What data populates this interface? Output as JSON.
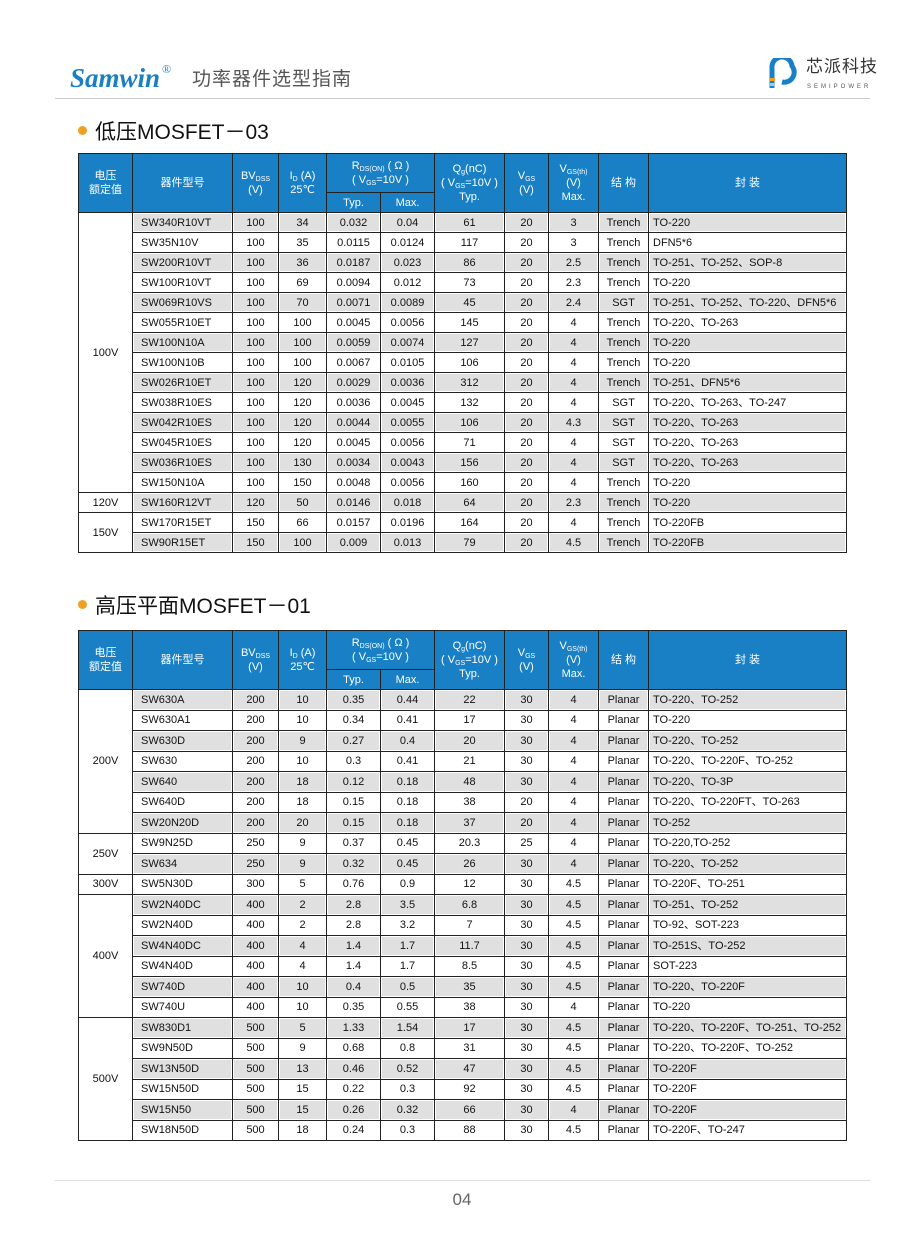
{
  "header": {
    "brand": "Samwin",
    "brand_mark": "®",
    "subtitle": "功率器件选型指南",
    "logo_cn": "芯派科技",
    "logo_en": "SEMIPOWER"
  },
  "colors": {
    "header_blue": "#1a80c6",
    "row_grey": "#e0e0e0",
    "bullet": "#f0a020"
  },
  "columns": {
    "voltage": [
      "电压",
      "额定值"
    ],
    "part": "器件型号",
    "bv": [
      "BV",
      "DSS",
      "(V)"
    ],
    "id": [
      "I",
      "D",
      " (A)",
      "25℃"
    ],
    "rds": [
      "R",
      "DS(ON)",
      " ( Ω )",
      "( V",
      "GS",
      "=10V )"
    ],
    "typ": "Typ.",
    "max": "Max.",
    "qg": [
      "Q",
      "g",
      "(nC)",
      "( V",
      "GS",
      "=10V )",
      "Typ."
    ],
    "vgs": [
      "V",
      "GS",
      "(V)"
    ],
    "vth": [
      "V",
      "GS(th)",
      "(V)",
      "Max."
    ],
    "struct": "结 构",
    "pkg": "封 装"
  },
  "sections": [
    {
      "title": "低压MOSFET－03",
      "groups": [
        {
          "voltage": "100V",
          "rows": [
            [
              "SW340R10VT",
              "100",
              "34",
              "0.032",
              "0.04",
              "61",
              "20",
              "3",
              "Trench",
              "TO-220"
            ],
            [
              "SW35N10V",
              "100",
              "35",
              "0.0115",
              "0.0124",
              "117",
              "20",
              "3",
              "Trench",
              "DFN5*6"
            ],
            [
              "SW200R10VT",
              "100",
              "36",
              "0.0187",
              "0.023",
              "86",
              "20",
              "2.5",
              "Trench",
              "TO-251、TO-252、SOP-8"
            ],
            [
              "SW100R10VT",
              "100",
              "69",
              "0.0094",
              "0.012",
              "73",
              "20",
              "2.3",
              "Trench",
              "TO-220"
            ],
            [
              "SW069R10VS",
              "100",
              "70",
              "0.0071",
              "0.0089",
              "45",
              "20",
              "2.4",
              "SGT",
              "TO-251、TO-252、TO-220、DFN5*6"
            ],
            [
              "SW055R10ET",
              "100",
              "100",
              "0.0045",
              "0.0056",
              "145",
              "20",
              "4",
              "Trench",
              "TO-220、TO-263"
            ],
            [
              "SW100N10A",
              "100",
              "100",
              "0.0059",
              "0.0074",
              "127",
              "20",
              "4",
              "Trench",
              "TO-220"
            ],
            [
              "SW100N10B",
              "100",
              "100",
              "0.0067",
              "0.0105",
              "106",
              "20",
              "4",
              "Trench",
              "TO-220"
            ],
            [
              "SW026R10ET",
              "100",
              "120",
              "0.0029",
              "0.0036",
              "312",
              "20",
              "4",
              "Trench",
              "TO-251、DFN5*6"
            ],
            [
              "SW038R10ES",
              "100",
              "120",
              "0.0036",
              "0.0045",
              "132",
              "20",
              "4",
              "SGT",
              "TO-220、TO-263、TO-247"
            ],
            [
              "SW042R10ES",
              "100",
              "120",
              "0.0044",
              "0.0055",
              "106",
              "20",
              "4.3",
              "SGT",
              "TO-220、TO-263"
            ],
            [
              "SW045R10ES",
              "100",
              "120",
              "0.0045",
              "0.0056",
              "71",
              "20",
              "4",
              "SGT",
              "TO-220、TO-263"
            ],
            [
              "SW036R10ES",
              "100",
              "130",
              "0.0034",
              "0.0043",
              "156",
              "20",
              "4",
              "SGT",
              "TO-220、TO-263"
            ],
            [
              "SW150N10A",
              "100",
              "150",
              "0.0048",
              "0.0056",
              "160",
              "20",
              "4",
              "Trench",
              "TO-220"
            ]
          ]
        },
        {
          "voltage": "120V",
          "rows": [
            [
              "SW160R12VT",
              "120",
              "50",
              "0.0146",
              "0.018",
              "64",
              "20",
              "2.3",
              "Trench",
              "TO-220"
            ]
          ]
        },
        {
          "voltage": "150V",
          "rows": [
            [
              "SW170R15ET",
              "150",
              "66",
              "0.0157",
              "0.0196",
              "164",
              "20",
              "4",
              "Trench",
              "TO-220FB"
            ],
            [
              "SW90R15ET",
              "150",
              "100",
              "0.009",
              "0.013",
              "79",
              "20",
              "4.5",
              "Trench",
              "TO-220FB"
            ]
          ]
        }
      ]
    },
    {
      "title": "高压平面MOSFET－01",
      "groups": [
        {
          "voltage": "200V",
          "rows": [
            [
              "SW630A",
              "200",
              "10",
              "0.35",
              "0.44",
              "22",
              "30",
              "4",
              "Planar",
              "TO-220、TO-252"
            ],
            [
              "SW630A1",
              "200",
              "10",
              "0.34",
              "0.41",
              "17",
              "30",
              "4",
              "Planar",
              "TO-220"
            ],
            [
              "SW630D",
              "200",
              "9",
              "0.27",
              "0.4",
              "20",
              "30",
              "4",
              "Planar",
              "TO-220、TO-252"
            ],
            [
              "SW630",
              "200",
              "10",
              "0.3",
              "0.41",
              "21",
              "30",
              "4",
              "Planar",
              "TO-220、TO-220F、TO-252"
            ],
            [
              "SW640",
              "200",
              "18",
              "0.12",
              "0.18",
              "48",
              "30",
              "4",
              "Planar",
              "TO-220、TO-3P"
            ],
            [
              "SW640D",
              "200",
              "18",
              "0.15",
              "0.18",
              "38",
              "20",
              "4",
              "Planar",
              "TO-220、TO-220FT、TO-263"
            ],
            [
              "SW20N20D",
              "200",
              "20",
              "0.15",
              "0.18",
              "37",
              "20",
              "4",
              "Planar",
              "TO-252"
            ]
          ]
        },
        {
          "voltage": "250V",
          "rows": [
            [
              "SW9N25D",
              "250",
              "9",
              "0.37",
              "0.45",
              "20.3",
              "25",
              "4",
              "Planar",
              "TO-220,TO-252"
            ],
            [
              "SW634",
              "250",
              "9",
              "0.32",
              "0.45",
              "26",
              "30",
              "4",
              "Planar",
              "TO-220、TO-252"
            ]
          ]
        },
        {
          "voltage": "300V",
          "rows": [
            [
              "SW5N30D",
              "300",
              "5",
              "0.76",
              "0.9",
              "12",
              "30",
              "4.5",
              "Planar",
              "TO-220F、TO-251"
            ]
          ]
        },
        {
          "voltage": "400V",
          "rows": [
            [
              "SW2N40DC",
              "400",
              "2",
              "2.8",
              "3.5",
              "6.8",
              "30",
              "4.5",
              "Planar",
              "TO-251、TO-252"
            ],
            [
              "SW2N40D",
              "400",
              "2",
              "2.8",
              "3.2",
              "7",
              "30",
              "4.5",
              "Planar",
              "TO-92、SOT-223"
            ],
            [
              "SW4N40DC",
              "400",
              "4",
              "1.4",
              "1.7",
              "11.7",
              "30",
              "4.5",
              "Planar",
              "TO-251S、TO-252"
            ],
            [
              "SW4N40D",
              "400",
              "4",
              "1.4",
              "1.7",
              "8.5",
              "30",
              "4.5",
              "Planar",
              "SOT-223"
            ],
            [
              "SW740D",
              "400",
              "10",
              "0.4",
              "0.5",
              "35",
              "30",
              "4.5",
              "Planar",
              "TO-220、TO-220F"
            ],
            [
              "SW740U",
              "400",
              "10",
              "0.35",
              "0.55",
              "38",
              "30",
              "4",
              "Planar",
              "TO-220"
            ]
          ]
        },
        {
          "voltage": "500V",
          "rows": [
            [
              "SW830D1",
              "500",
              "5",
              "1.33",
              "1.54",
              "17",
              "30",
              "4.5",
              "Planar",
              "TO-220、TO-220F、TO-251、TO-252"
            ],
            [
              "SW9N50D",
              "500",
              "9",
              "0.68",
              "0.8",
              "31",
              "30",
              "4.5",
              "Planar",
              "TO-220、TO-220F、TO-252"
            ],
            [
              "SW13N50D",
              "500",
              "13",
              "0.46",
              "0.52",
              "47",
              "30",
              "4.5",
              "Planar",
              "TO-220F"
            ],
            [
              "SW15N50D",
              "500",
              "15",
              "0.22",
              "0.3",
              "92",
              "30",
              "4.5",
              "Planar",
              "TO-220F"
            ],
            [
              "SW15N50",
              "500",
              "15",
              "0.26",
              "0.32",
              "66",
              "30",
              "4",
              "Planar",
              "TO-220F"
            ],
            [
              "SW18N50D",
              "500",
              "18",
              "0.24",
              "0.3",
              "88",
              "30",
              "4.5",
              "Planar",
              "TO-220F、TO-247"
            ]
          ]
        }
      ]
    }
  ],
  "footer": {
    "page": "04"
  }
}
